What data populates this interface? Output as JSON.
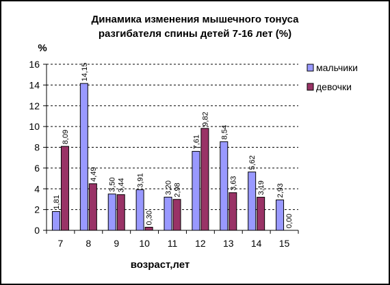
{
  "chart_data": {
    "type": "bar",
    "title": "Динамика изменения мышечного тонуса",
    "subtitle": "разгибателя спины детей 7-16 лет (%)",
    "ylabel": "%",
    "xlabel": "возраст,лет",
    "ylim": [
      0,
      16
    ],
    "y_ticks": [
      "0",
      "2",
      "4",
      "6",
      "8",
      "10",
      "12",
      "14",
      "16"
    ],
    "y_tick_values": [
      0,
      2,
      4,
      6,
      8,
      10,
      12,
      14,
      16
    ],
    "grid": "horizontal dashed",
    "legend_position": "right",
    "categories": [
      "7",
      "8",
      "9",
      "10",
      "11",
      "12",
      "13",
      "14",
      "15"
    ],
    "series": [
      {
        "name": "мальчики",
        "color": "#9999ff",
        "values": [
          1.81,
          14.15,
          3.5,
          3.91,
          3.2,
          7.61,
          8.54,
          5.62,
          2.93
        ],
        "labels": [
          "1,81",
          "14,15",
          "3,50",
          "3,91",
          "3,20",
          "7,61",
          "8,54",
          "5,62",
          "2,93"
        ]
      },
      {
        "name": "девочки",
        "color": "#993366",
        "values": [
          8.09,
          4.49,
          3.44,
          0.3,
          2.98,
          9.82,
          3.63,
          3.19,
          0.0
        ],
        "labels": [
          "8,09",
          "4,49",
          "3,44",
          "0,30",
          "2,98",
          "9,82",
          "3,63",
          "3,19",
          "0,00"
        ]
      }
    ]
  }
}
